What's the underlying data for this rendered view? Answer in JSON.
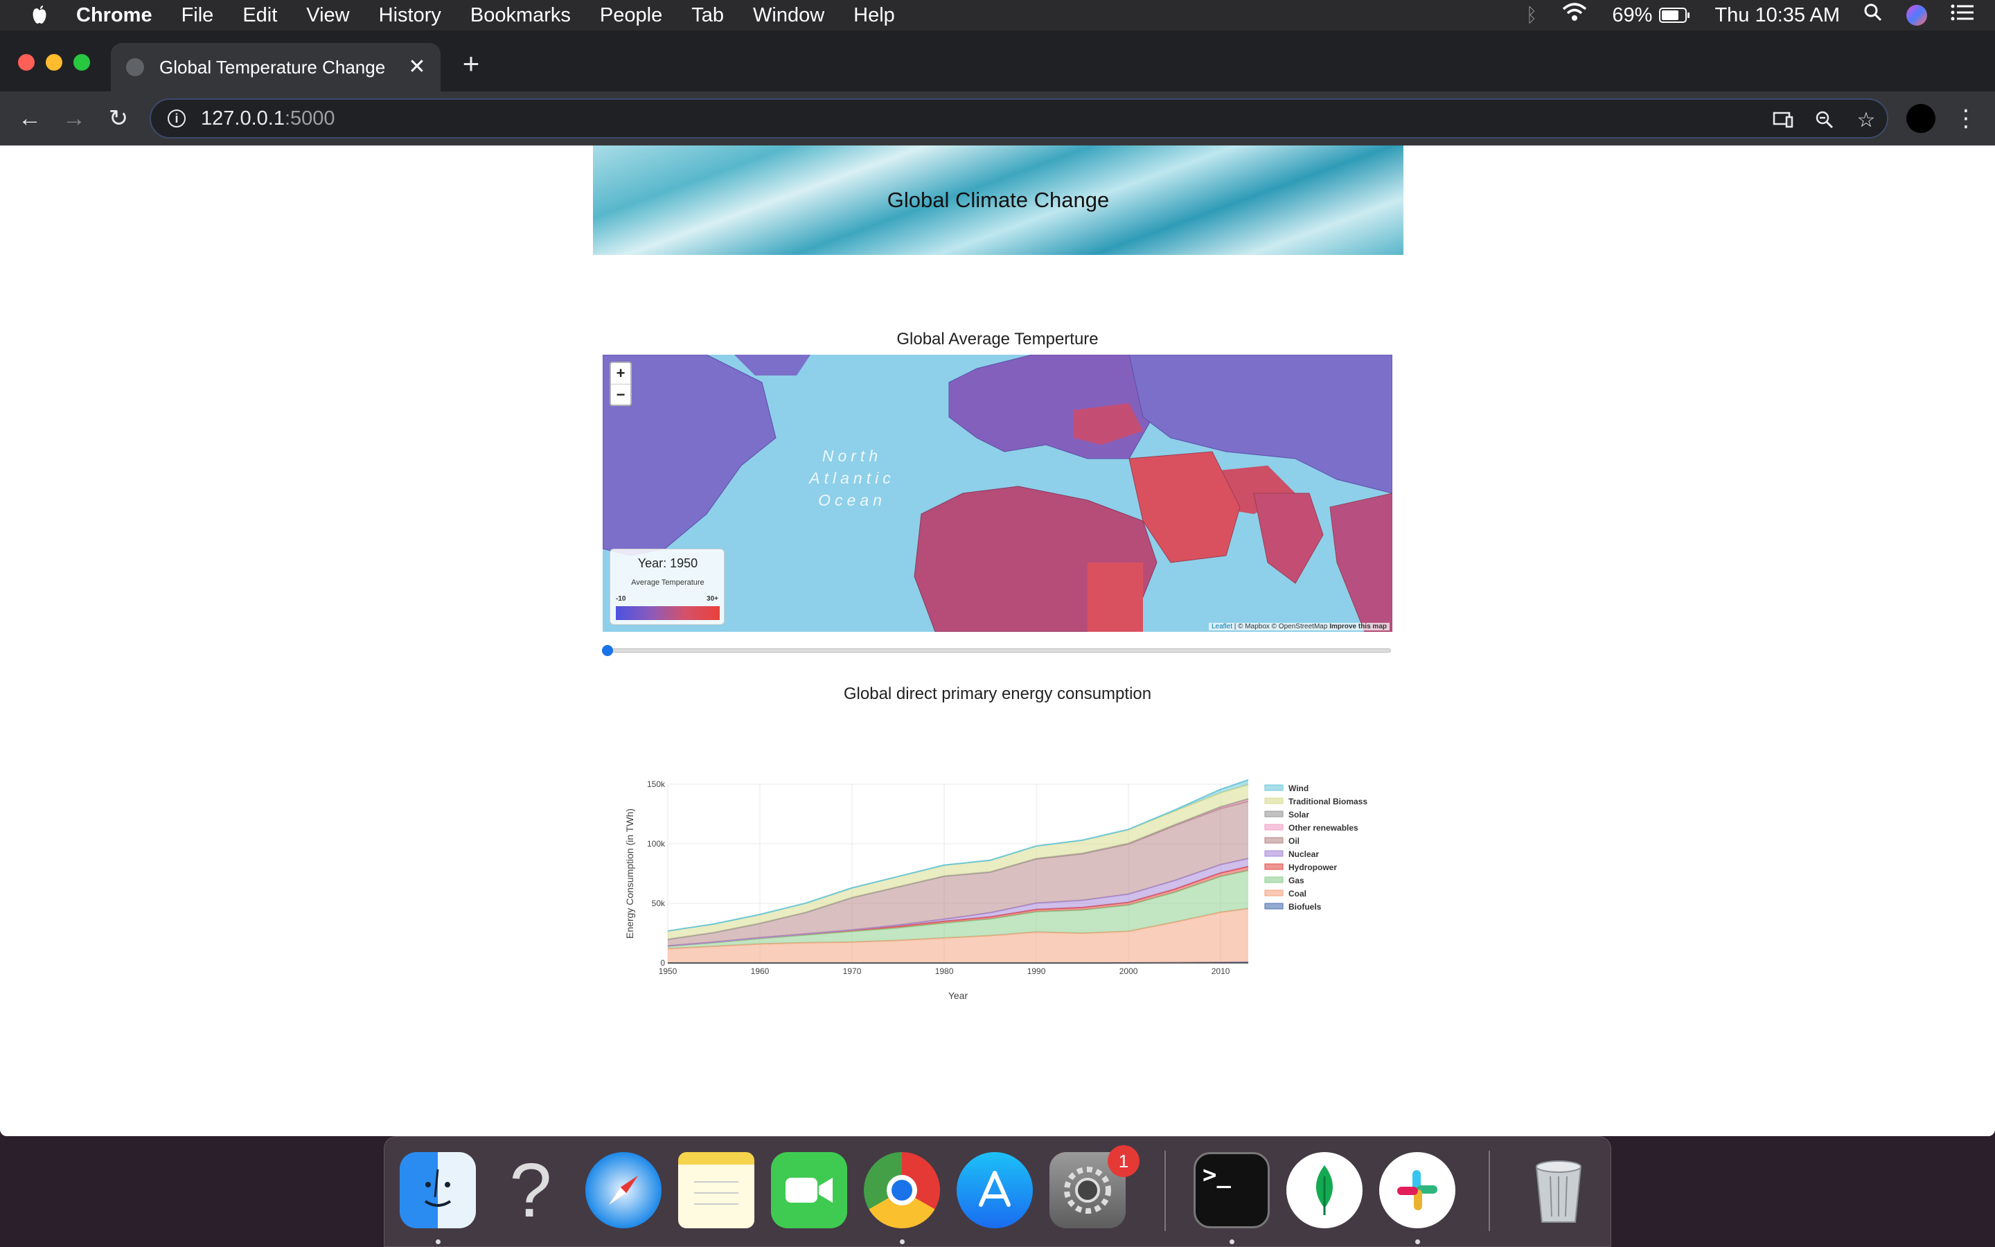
{
  "menubar": {
    "app_name": "Chrome",
    "items": [
      "File",
      "Edit",
      "View",
      "History",
      "Bookmarks",
      "People",
      "Tab",
      "Window",
      "Help"
    ],
    "battery": "69%",
    "clock": "Thu 10:35 AM"
  },
  "browser": {
    "tab_title": "Global Temperature Change",
    "url_host": "127.0.0.1",
    "url_port": ":5000"
  },
  "page": {
    "banner_title": "Global Climate Change",
    "map_section_title": "Global Average Temperture",
    "map": {
      "zoom_in": "+",
      "zoom_out": "−",
      "ocean_label": "North Atlantic Ocean",
      "legend_year": "Year: 1950",
      "legend_caption": "Average Temperature",
      "legend_min": "-10",
      "legend_max": "30+",
      "attribution_leaflet": "Leaflet",
      "attribution_rest": "| © Mapbox © OpenStreetMap",
      "attribution_improve": "Improve this map",
      "colors": {
        "ocean": "#8ecfe9",
        "cold": "#7b6fc9",
        "warm": "#d9515f"
      }
    },
    "slider": {
      "value_fraction": 0.0
    },
    "energy_section_title": "Global direct primary energy consumption"
  },
  "chart_data": {
    "type": "area",
    "title": "Global direct primary energy consumption",
    "xlabel": "Year",
    "ylabel": "Energy Consumption (in TWh)",
    "xlim": [
      1950,
      2013
    ],
    "ylim": [
      0,
      150000
    ],
    "x_ticks": [
      "1950",
      "1960",
      "1970",
      "1980",
      "1990",
      "2000",
      "2010"
    ],
    "y_ticks": [
      "0",
      "50k",
      "100k",
      "150k"
    ],
    "grid": true,
    "legend_position": "right",
    "stacked": true,
    "x": [
      1950,
      1955,
      1960,
      1965,
      1970,
      1975,
      1980,
      1985,
      1990,
      1995,
      2000,
      2005,
      2010,
      2013
    ],
    "series": [
      {
        "name": "Biofuels",
        "color": "#4c72b0",
        "values": [
          0,
          0,
          0,
          0,
          0,
          0,
          0,
          0,
          0,
          0,
          100,
          300,
          600,
          700
        ]
      },
      {
        "name": "Coal",
        "color": "#f4a582",
        "values": [
          12000,
          14000,
          16000,
          17000,
          17500,
          19000,
          21000,
          23000,
          26000,
          25000,
          26500,
          34000,
          42000,
          45000
        ]
      },
      {
        "name": "Gas",
        "color": "#8fcf8f",
        "values": [
          2000,
          3000,
          4500,
          6500,
          9000,
          10500,
          12500,
          14000,
          17000,
          19500,
          22000,
          25000,
          30000,
          32000
        ]
      },
      {
        "name": "Hydropower",
        "color": "#e2504b",
        "values": [
          350,
          500,
          700,
          900,
          1100,
          1300,
          1500,
          1700,
          1900,
          2100,
          2300,
          2600,
          3000,
          3200
        ]
      },
      {
        "name": "Nuclear",
        "color": "#a78bd8",
        "values": [
          0,
          0,
          10,
          50,
          200,
          1000,
          1800,
          3500,
          5400,
          6000,
          6900,
          7300,
          7000,
          6800
        ]
      },
      {
        "name": "Oil",
        "color": "#b98a8a",
        "values": [
          5500,
          8000,
          12000,
          18000,
          27000,
          32000,
          36000,
          34000,
          37000,
          39000,
          42000,
          46000,
          47000,
          48000
        ]
      },
      {
        "name": "Other renewables",
        "color": "#f2a0c8",
        "values": [
          0,
          0,
          0,
          0,
          0,
          50,
          100,
          200,
          300,
          400,
          500,
          700,
          1200,
          1500
        ]
      },
      {
        "name": "Solar",
        "color": "#9a9a9a",
        "values": [
          0,
          0,
          0,
          0,
          0,
          0,
          0,
          0,
          0,
          0,
          10,
          30,
          300,
          600
        ]
      },
      {
        "name": "Traditional Biomass",
        "color": "#d9dc8f",
        "values": [
          7000,
          7200,
          7500,
          7800,
          8200,
          8700,
          9200,
          9800,
          10500,
          11000,
          11500,
          11500,
          11700,
          11800
        ]
      },
      {
        "name": "Wind",
        "color": "#6fc8d8",
        "values": [
          0,
          0,
          0,
          0,
          0,
          0,
          0,
          10,
          30,
          80,
          300,
          900,
          2900,
          4000
        ]
      }
    ]
  },
  "dock": {
    "items": [
      "Finder",
      "Help",
      "Safari",
      "Notes",
      "FaceTime",
      "Chrome",
      "App Store",
      "System Preferences",
      "Terminal",
      "MongoDB Compass",
      "Slack",
      "Trash"
    ],
    "badge_count": "1",
    "question_glyph": "?",
    "terminal_glyph": ">_"
  }
}
